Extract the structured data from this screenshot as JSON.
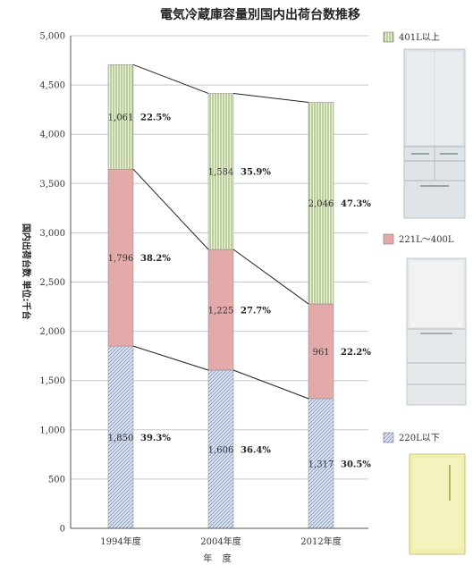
{
  "chart_data": {
    "type": "bar",
    "stacked": true,
    "title": "電気冷蔵庫容量別国内出荷台数推移",
    "ylabel": "国内出荷台数 単位:千台",
    "xlabel": "年 度",
    "categories": [
      "1994年度",
      "2004年度",
      "2012年度"
    ],
    "ylim": [
      0,
      5000
    ],
    "yticks": [
      "0",
      "500",
      "1,000",
      "1,500",
      "2,000",
      "2,500",
      "3,000",
      "3,500",
      "4,000",
      "4,500",
      "5,000"
    ],
    "series": [
      {
        "name": "220L以下",
        "color": "#b7c7e6",
        "values": [
          1850,
          1606,
          1317
        ],
        "value_labels": [
          "1,850",
          "1,606",
          "1,317"
        ],
        "percent_labels": [
          "39.3%",
          "36.4%",
          "30.5%"
        ]
      },
      {
        "name": "221L～400L",
        "color": "#e3aaa9",
        "values": [
          1796,
          1225,
          961
        ],
        "value_labels": [
          "1,796",
          "1,225",
          "961"
        ],
        "percent_labels": [
          "38.2%",
          "27.7%",
          "22.2%"
        ]
      },
      {
        "name": "401L以上",
        "color": "#c4d79b",
        "values": [
          1061,
          1584,
          2046
        ],
        "value_labels": [
          "1,061",
          "1,584",
          "2,046"
        ],
        "percent_labels": [
          "22.5%",
          "35.9%",
          "47.3%"
        ]
      }
    ],
    "legend_position": "right",
    "grid": true
  }
}
